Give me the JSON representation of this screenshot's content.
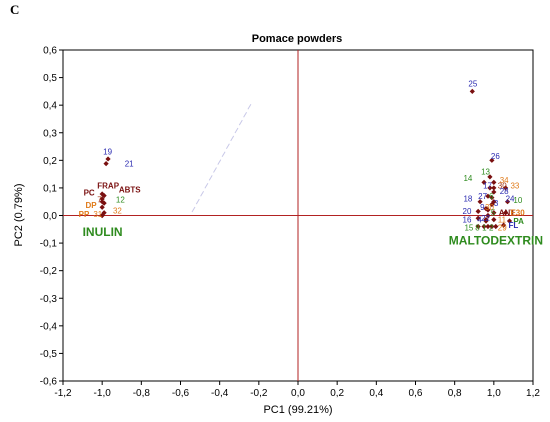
{
  "panel_letter": "C",
  "chart_data": {
    "type": "scatter",
    "title": "Pomace powders",
    "xlabel": "PC1 (99.21%)",
    "ylabel": "PC2 (0.79%)",
    "xlim": [
      -1.2,
      1.2
    ],
    "ylim": [
      -0.6,
      0.6
    ],
    "x_ticks": [
      "-1,2",
      "-1,0",
      "-0,8",
      "-0,6",
      "-0,4",
      "-0,2",
      "0,0",
      "0,2",
      "0,4",
      "0,6",
      "0,8",
      "1,0",
      "1,2"
    ],
    "y_ticks": [
      "0,6",
      "0,5",
      "0,4",
      "0,3",
      "0,2",
      "0,1",
      "0,0",
      "-0,1",
      "-0,2",
      "-0,3",
      "-0,4",
      "-0,5",
      "-0,6"
    ],
    "grid": false,
    "colors": {
      "dark_red": "#7a1010",
      "blue": "#2a2ab0",
      "green": "#2e8b1e",
      "orange": "#e07b1a",
      "brown": "#a03010",
      "axis_line": "#b22222"
    },
    "points": [
      {
        "label": "19",
        "x": -0.97,
        "y": 0.205,
        "lx": -0.995,
        "ly": 0.222,
        "color": "blue"
      },
      {
        "label": "21",
        "x": -0.98,
        "y": 0.188,
        "lx": -0.885,
        "ly": 0.178,
        "color": "blue"
      },
      {
        "label": "FRAP",
        "x": -1.0,
        "y": 0.078,
        "lx": -1.025,
        "ly": 0.098,
        "color": "dark_red"
      },
      {
        "label": "ABTS",
        "x": -0.99,
        "y": 0.072,
        "lx": -0.915,
        "ly": 0.083,
        "color": "dark_red"
      },
      {
        "label": "PC",
        "x": -1.0,
        "y": 0.06,
        "lx": -1.095,
        "ly": 0.073,
        "color": "dark_red"
      },
      {
        "label": "7",
        "x": -1.0,
        "y": 0.05,
        "lx": -1.025,
        "ly": 0.048,
        "color": "brown"
      },
      {
        "label": "12",
        "x": -0.99,
        "y": 0.045,
        "lx": -0.93,
        "ly": 0.048,
        "color": "green"
      },
      {
        "label": "DP",
        "x": -1.0,
        "y": 0.03,
        "lx": -1.085,
        "ly": 0.028,
        "color": "orange"
      },
      {
        "label": "32",
        "x": -0.99,
        "y": 0.01,
        "lx": -0.945,
        "ly": 0.008,
        "color": "orange"
      },
      {
        "label": "PP",
        "x": -1.0,
        "y": 0.0,
        "lx": -1.12,
        "ly": -0.005,
        "color": "orange"
      },
      {
        "label": "31",
        "x": -1.0,
        "y": 0.0,
        "lx": -1.045,
        "ly": -0.005,
        "color": "orange"
      },
      {
        "label": "25",
        "x": 0.89,
        "y": 0.45,
        "lx": 0.87,
        "ly": 0.468,
        "color": "blue"
      },
      {
        "label": "26",
        "x": 0.99,
        "y": 0.2,
        "lx": 0.985,
        "ly": 0.205,
        "color": "blue"
      },
      {
        "label": "13",
        "x": 0.98,
        "y": 0.14,
        "lx": 0.935,
        "ly": 0.148,
        "color": "green"
      },
      {
        "label": "14",
        "x": 0.95,
        "y": 0.12,
        "lx": 0.845,
        "ly": 0.125,
        "color": "green"
      },
      {
        "label": "34",
        "x": 1.0,
        "y": 0.12,
        "lx": 1.03,
        "ly": 0.118,
        "color": "orange"
      },
      {
        "label": "17",
        "x": 0.98,
        "y": 0.1,
        "lx": 0.945,
        "ly": 0.098,
        "color": "blue"
      },
      {
        "label": "30",
        "x": 1.0,
        "y": 0.1,
        "lx": 1.02,
        "ly": 0.098,
        "color": "brown"
      },
      {
        "label": "33",
        "x": 1.06,
        "y": 0.1,
        "lx": 1.085,
        "ly": 0.098,
        "color": "orange"
      },
      {
        "label": "28",
        "x": 1.0,
        "y": 0.085,
        "lx": 1.03,
        "ly": 0.078,
        "color": "blue"
      },
      {
        "label": "27",
        "x": 0.97,
        "y": 0.07,
        "lx": 0.92,
        "ly": 0.06,
        "color": "blue"
      },
      {
        "label": "6",
        "x": 0.99,
        "y": 0.065,
        "lx": 0.975,
        "ly": 0.06,
        "color": "green"
      },
      {
        "label": "18",
        "x": 0.93,
        "y": 0.05,
        "lx": 0.845,
        "ly": 0.05,
        "color": "blue"
      },
      {
        "label": "24",
        "x": 1.0,
        "y": 0.05,
        "lx": 1.06,
        "ly": 0.05,
        "color": "blue"
      },
      {
        "label": "10",
        "x": 1.07,
        "y": 0.05,
        "lx": 1.1,
        "ly": 0.045,
        "color": "green"
      },
      {
        "label": "3",
        "x": 0.99,
        "y": 0.04,
        "lx": 1.0,
        "ly": 0.035,
        "color": "blue"
      },
      {
        "label": "9",
        "x": 0.96,
        "y": 0.025,
        "lx": 0.93,
        "ly": 0.02,
        "color": "blue"
      },
      {
        "label": "20",
        "x": 0.92,
        "y": 0.015,
        "lx": 0.84,
        "ly": 0.005,
        "color": "blue"
      },
      {
        "label": "30",
        "x": 0.97,
        "y": 0.02,
        "lx": 0.955,
        "ly": 0.02,
        "color": "orange"
      },
      {
        "label": "ANT",
        "x": 1.0,
        "y": 0.01,
        "lx": 1.025,
        "ly": 0.0,
        "color": "dark_red"
      },
      {
        "label": "E30",
        "x": 1.06,
        "y": 0.01,
        "lx": 1.085,
        "ly": 0.0,
        "color": "orange"
      },
      {
        "label": "5",
        "x": 0.97,
        "y": 0.0,
        "lx": 0.985,
        "ly": 0.0,
        "color": "green"
      },
      {
        "label": "16",
        "x": 0.92,
        "y": -0.01,
        "lx": 0.84,
        "ly": -0.025,
        "color": "blue"
      },
      {
        "label": "4",
        "x": 0.96,
        "y": -0.015,
        "lx": 0.915,
        "ly": -0.025,
        "color": "blue"
      },
      {
        "label": "22",
        "x": 0.96,
        "y": -0.02,
        "lx": 0.935,
        "ly": -0.02,
        "color": "blue"
      },
      {
        "label": "11",
        "x": 1.0,
        "y": -0.015,
        "lx": 1.02,
        "ly": -0.025,
        "color": "orange"
      },
      {
        "label": "PA",
        "x": 1.08,
        "y": -0.02,
        "lx": 1.1,
        "ly": -0.03,
        "color": "green"
      },
      {
        "label": "15",
        "x": 0.92,
        "y": -0.04,
        "lx": 0.85,
        "ly": -0.055,
        "color": "green"
      },
      {
        "label": "8",
        "x": 0.95,
        "y": -0.04,
        "lx": 0.905,
        "ly": -0.055,
        "color": "green"
      },
      {
        "label": "1",
        "x": 0.97,
        "y": -0.04,
        "lx": 0.94,
        "ly": -0.055,
        "color": "green"
      },
      {
        "label": "2",
        "x": 0.99,
        "y": -0.04,
        "lx": 0.975,
        "ly": -0.055,
        "color": "green"
      },
      {
        "label": "29",
        "x": 1.01,
        "y": -0.04,
        "lx": 1.02,
        "ly": -0.055,
        "color": "orange"
      },
      {
        "label": "FL",
        "x": 1.05,
        "y": -0.035,
        "lx": 1.075,
        "ly": -0.045,
        "color": "blue"
      }
    ],
    "group_labels": [
      {
        "text": "INULIN",
        "x": -1.1,
        "y": -0.075,
        "color": "green"
      },
      {
        "text": "MALTODEXTRIN",
        "x": 0.77,
        "y": -0.105,
        "color": "green"
      }
    ]
  }
}
